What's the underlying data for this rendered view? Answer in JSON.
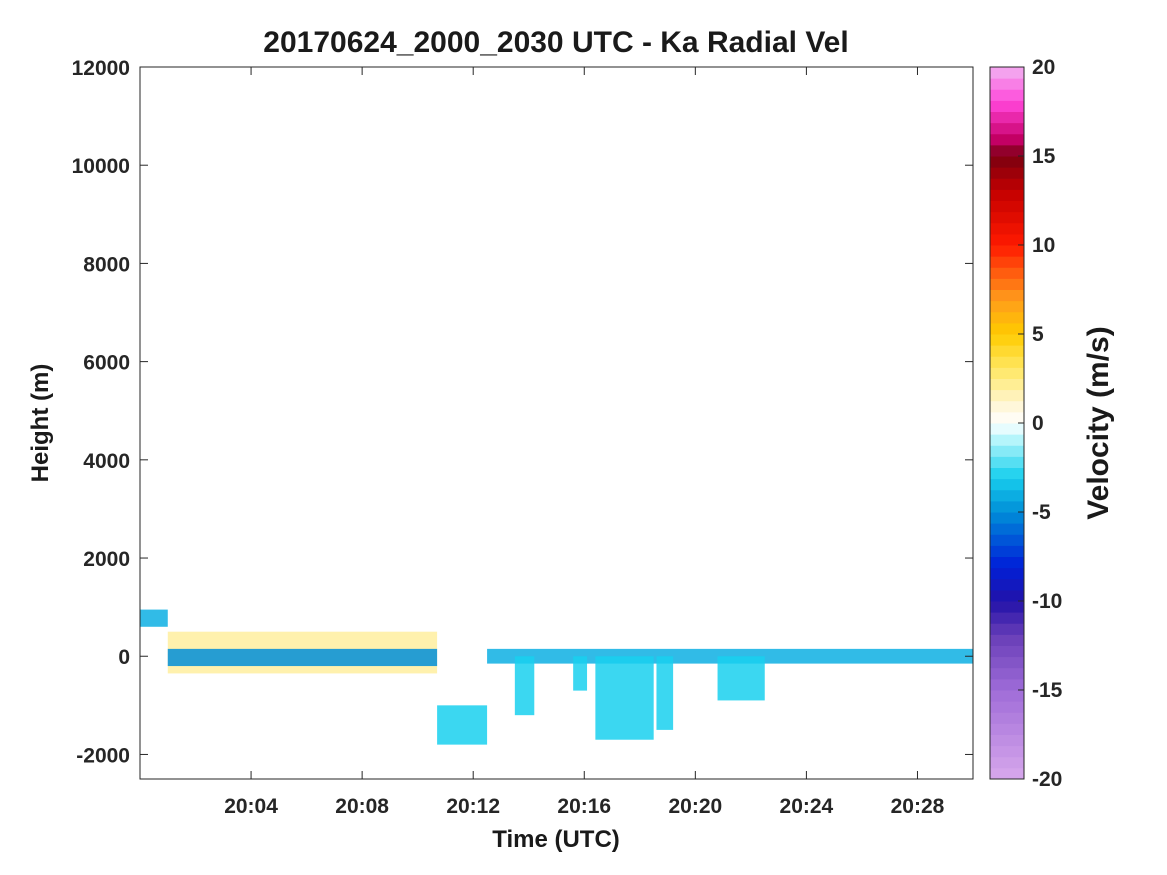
{
  "chart_data": {
    "type": "heatmap",
    "title": "20170624_2000_2030 UTC - Ka Radial Vel",
    "xlabel": "Time (UTC)",
    "ylabel": "Height (m)",
    "x_range": [
      "20:00",
      "20:30"
    ],
    "x_ticks": [
      "20:04",
      "20:08",
      "20:12",
      "20:16",
      "20:20",
      "20:24",
      "20:28"
    ],
    "ylim": [
      -2500,
      12000
    ],
    "y_ticks": [
      -2000,
      0,
      2000,
      4000,
      6000,
      8000,
      10000,
      12000
    ],
    "grid": false,
    "colorbar": {
      "label": "Velocity (m/s)",
      "range": [
        -20,
        20
      ],
      "ticks": [
        -20,
        -15,
        -10,
        -5,
        0,
        5,
        10,
        15,
        20
      ]
    },
    "features": [
      {
        "t_start": "20:00",
        "t_end": "20:01",
        "height_bottom": 600,
        "height_top": 950,
        "velocity": -4
      },
      {
        "t_start": "20:01",
        "t_end": "20:10.7",
        "height_bottom": -350,
        "height_top": 500,
        "velocity": 2
      },
      {
        "t_start": "20:01",
        "t_end": "20:10.7",
        "height_bottom": -200,
        "height_top": 150,
        "velocity": -5
      },
      {
        "t_start": "20:10.7",
        "t_end": "20:12.5",
        "height_bottom": -1800,
        "height_top": -1000,
        "velocity": -3
      },
      {
        "t_start": "20:12.5",
        "t_end": "20:30",
        "height_bottom": -150,
        "height_top": 150,
        "velocity": -4
      },
      {
        "t_start": "20:13.5",
        "t_end": "20:14.2",
        "height_bottom": -1200,
        "height_top": 0,
        "velocity": -3
      },
      {
        "t_start": "20:15.6",
        "t_end": "20:16.1",
        "height_bottom": -700,
        "height_top": 0,
        "velocity": -3
      },
      {
        "t_start": "20:16.4",
        "t_end": "20:18.5",
        "height_bottom": -1700,
        "height_top": 0,
        "velocity": -3
      },
      {
        "t_start": "20:18.6",
        "t_end": "20:19.2",
        "height_bottom": -1500,
        "height_top": 0,
        "velocity": -3
      },
      {
        "t_start": "20:20.8",
        "t_end": "20:22.5",
        "height_bottom": -900,
        "height_top": 0,
        "velocity": -3
      }
    ]
  }
}
